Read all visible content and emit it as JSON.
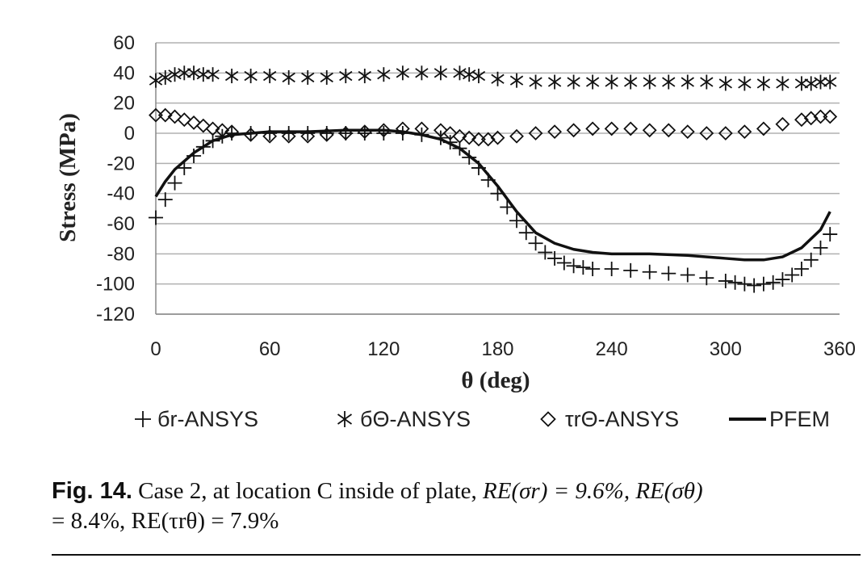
{
  "chart_data": {
    "type": "line",
    "xlabel": "θ (deg)",
    "ylabel": "Stress (MPa)",
    "xlim": [
      0,
      360
    ],
    "ylim": [
      -120,
      60
    ],
    "xticks": [
      0,
      60,
      120,
      180,
      240,
      300,
      360
    ],
    "yticks": [
      60,
      40,
      20,
      0,
      -20,
      -40,
      -60,
      -80,
      -100,
      -120
    ],
    "grid": "horizontal",
    "legend_position": "bottom",
    "series": [
      {
        "name": "бr-ANSYS",
        "marker": "plus",
        "x": [
          0,
          5,
          10,
          15,
          20,
          25,
          30,
          35,
          40,
          50,
          60,
          70,
          80,
          90,
          100,
          110,
          120,
          130,
          140,
          150,
          155,
          160,
          165,
          170,
          175,
          180,
          185,
          190,
          195,
          200,
          205,
          210,
          215,
          220,
          225,
          230,
          240,
          250,
          260,
          270,
          280,
          290,
          300,
          305,
          310,
          315,
          320,
          325,
          330,
          335,
          340,
          345,
          350,
          355
        ],
        "y": [
          -56,
          -44,
          -33,
          -23,
          -15,
          -9,
          -5,
          -2,
          0,
          0,
          0,
          0,
          0,
          0,
          0,
          0,
          0,
          0,
          -1,
          -3,
          -6,
          -10,
          -16,
          -23,
          -31,
          -40,
          -49,
          -58,
          -66,
          -73,
          -79,
          -83,
          -86,
          -88,
          -89,
          -90,
          -90,
          -91,
          -92,
          -93,
          -94,
          -96,
          -98,
          -99,
          -100,
          -101,
          -100,
          -99,
          -97,
          -94,
          -90,
          -84,
          -76,
          -67
        ]
      },
      {
        "name": "бΘ-ANSYS",
        "marker": "asterisk",
        "x": [
          0,
          5,
          10,
          15,
          20,
          25,
          30,
          40,
          50,
          60,
          70,
          80,
          90,
          100,
          110,
          120,
          130,
          140,
          150,
          160,
          165,
          170,
          180,
          190,
          200,
          210,
          220,
          230,
          240,
          250,
          260,
          270,
          280,
          290,
          300,
          310,
          320,
          330,
          340,
          345,
          350,
          355
        ],
        "y": [
          35,
          37,
          39,
          40,
          40,
          39,
          39,
          38,
          38,
          38,
          37,
          37,
          37,
          38,
          38,
          39,
          40,
          40,
          40,
          40,
          39,
          38,
          36,
          35,
          34,
          34,
          34,
          34,
          34,
          34,
          34,
          34,
          34,
          34,
          33,
          33,
          33,
          33,
          33,
          33,
          34,
          34
        ]
      },
      {
        "name": "τrΘ-ANSYS",
        "marker": "diamond",
        "x": [
          0,
          5,
          10,
          15,
          20,
          25,
          30,
          35,
          40,
          50,
          60,
          70,
          80,
          90,
          100,
          110,
          120,
          130,
          140,
          150,
          155,
          160,
          165,
          170,
          175,
          180,
          190,
          200,
          210,
          220,
          230,
          240,
          250,
          260,
          270,
          280,
          290,
          300,
          310,
          320,
          330,
          340,
          345,
          350,
          355
        ],
        "y": [
          12,
          12,
          11,
          9,
          7,
          5,
          3,
          2,
          1,
          -1,
          -2,
          -2,
          -2,
          -1,
          0,
          1,
          2,
          3,
          3,
          2,
          0,
          -2,
          -3,
          -4,
          -4,
          -3,
          -2,
          0,
          1,
          2,
          3,
          3,
          3,
          2,
          2,
          1,
          0,
          0,
          1,
          3,
          6,
          9,
          10,
          11,
          11
        ]
      },
      {
        "name": "PFEM",
        "marker": "line",
        "x": [
          0,
          5,
          10,
          20,
          30,
          40,
          50,
          60,
          80,
          100,
          120,
          130,
          140,
          150,
          160,
          170,
          180,
          190,
          200,
          210,
          220,
          230,
          240,
          260,
          280,
          300,
          310,
          320,
          330,
          340,
          350,
          355
        ],
        "y": [
          -42,
          -32,
          -24,
          -13,
          -5,
          -1,
          0,
          1,
          1,
          2,
          2,
          1,
          -1,
          -4,
          -10,
          -20,
          -35,
          -52,
          -66,
          -73,
          -77,
          -79,
          -80,
          -80,
          -81,
          -83,
          -84,
          -84,
          -82,
          -76,
          -64,
          -52
        ]
      }
    ]
  },
  "caption": {
    "fig_label": "Fig.  14.",
    "text_line1": " Case 2, at location C inside of plate, ",
    "re_sigma_r": "RE(σr) = 9.6%, ",
    "re_sigma_theta": "RE(σθ)",
    "line2": "= 8.4%, RE(τrθ) = 7.9%"
  }
}
